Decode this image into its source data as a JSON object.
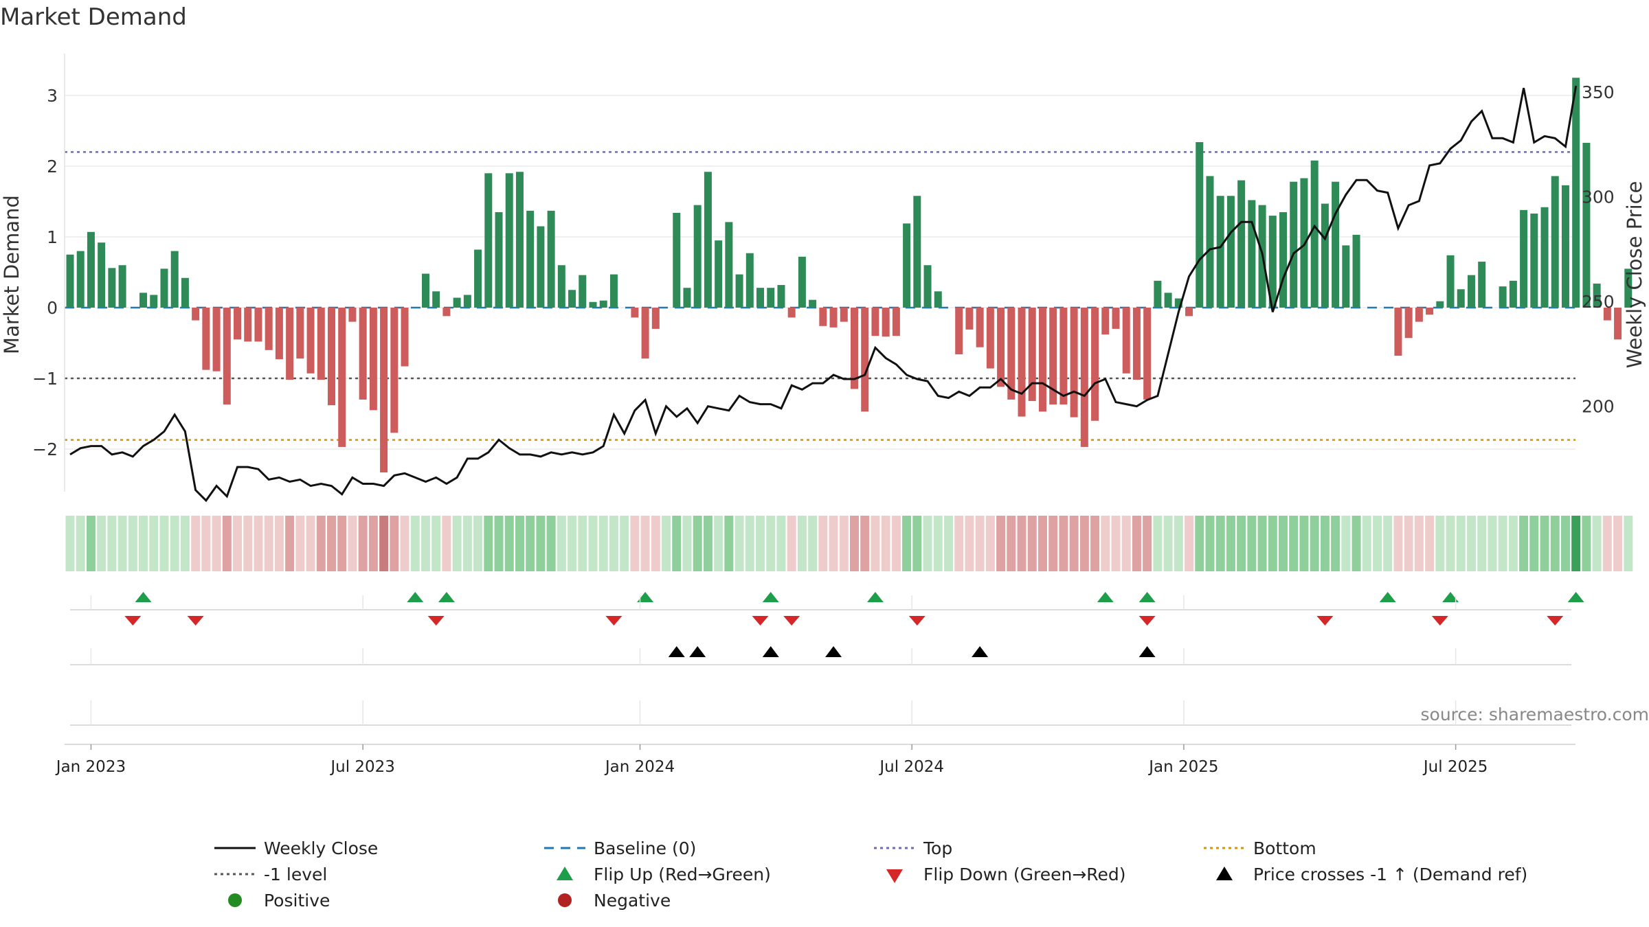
{
  "chart_data": {
    "type": "bar",
    "title": "Market Demand",
    "ylabel_left": "Market Demand",
    "ylabel_right": "Weekly Close Price",
    "ylim_left": [
      -2.55,
      3.55
    ],
    "ylim_right": [
      161,
      367
    ],
    "yticks_left": [
      {
        "v": 3,
        "label": "3"
      },
      {
        "v": 2,
        "label": "2"
      },
      {
        "v": 1,
        "label": "1"
      },
      {
        "v": 0,
        "label": "0"
      },
      {
        "v": -1,
        "label": "−1"
      },
      {
        "v": -2,
        "label": "−2"
      }
    ],
    "yticks_right": [
      {
        "v": 350,
        "label": "350"
      },
      {
        "v": 300,
        "label": "300"
      },
      {
        "v": 250,
        "label": "250"
      },
      {
        "v": 200,
        "label": "200"
      }
    ],
    "xticks": [
      {
        "i": 2,
        "label": "Jan 2023"
      },
      {
        "i": 28,
        "label": "Jul 2023"
      },
      {
        "i": 54.5,
        "label": "Jan 2024"
      },
      {
        "i": 80.5,
        "label": "Jul 2024"
      },
      {
        "i": 106.5,
        "label": "Jan 2025"
      },
      {
        "i": 132.5,
        "label": "Jul 2025"
      }
    ],
    "reference_lines": {
      "top": 2.2,
      "bottom": -1.87,
      "minus_one": -1,
      "baseline": 0
    },
    "demand": [
      0.75,
      0.8,
      1.07,
      0.92,
      0.56,
      0.6,
      0,
      0.21,
      0.18,
      0.55,
      0.8,
      0.42,
      -0.18,
      -0.88,
      -0.9,
      -1.37,
      -0.45,
      -0.48,
      -0.48,
      -0.6,
      -0.73,
      -1.02,
      -0.72,
      -0.93,
      -1.02,
      -1.38,
      -1.97,
      -0.2,
      -1.3,
      -1.45,
      -2.33,
      -1.77,
      -0.83,
      0,
      0.48,
      0.23,
      -0.12,
      0.14,
      0.18,
      0.82,
      1.9,
      1.35,
      1.9,
      1.92,
      1.37,
      1.15,
      1.37,
      0.6,
      0.25,
      0.46,
      0.08,
      0.1,
      0.47,
      0,
      -0.14,
      -0.72,
      -0.3,
      0,
      1.34,
      0.28,
      1.45,
      1.92,
      0.95,
      1.21,
      0.47,
      0.77,
      0.28,
      0.28,
      0.32,
      -0.14,
      0.72,
      0.11,
      -0.26,
      -0.28,
      -0.2,
      -1.15,
      -1.47,
      -0.4,
      -0.41,
      -0.4,
      1.19,
      1.58,
      0.6,
      0.23,
      0,
      -0.66,
      -0.31,
      -0.56,
      -0.86,
      -1.12,
      -1.3,
      -1.54,
      -1.32,
      -1.47,
      -1.37,
      -1.37,
      -1.55,
      -1.97,
      -1.6,
      -0.38,
      -0.3,
      -0.93,
      -1.02,
      -1.3,
      0.38,
      0.21,
      0.13,
      -0.12,
      2.34,
      1.86,
      1.58,
      1.58,
      1.8,
      1.52,
      1.45,
      1.3,
      1.35,
      1.78,
      1.83,
      2.08,
      1.47,
      1.78,
      0.88,
      1.03,
      0,
      0,
      0,
      -0.68,
      -0.43,
      -0.2,
      -0.1,
      0.09,
      0.74,
      0.26,
      0.46,
      0.65,
      0,
      0.3,
      0.38,
      1.38,
      1.33,
      1.42,
      1.86,
      1.73,
      3.25,
      2.33,
      0.34,
      -0.18,
      -0.45,
      0.55
    ],
    "weekly_close": [
      177,
      180,
      181,
      181,
      177,
      178,
      176,
      181,
      184,
      188,
      196,
      188,
      160,
      155,
      162,
      157,
      171,
      171,
      170,
      165,
      166,
      164,
      165,
      162,
      163,
      162,
      158,
      166,
      163,
      163,
      162,
      167,
      168,
      166,
      164,
      166,
      163,
      166,
      175,
      175,
      178,
      184,
      180,
      177,
      177,
      176,
      178,
      177,
      178,
      177,
      178,
      181,
      196,
      187,
      198,
      203,
      187,
      200,
      195,
      199,
      192,
      200,
      199,
      198,
      205,
      202,
      201,
      201,
      199,
      210,
      208,
      211,
      211,
      215,
      213,
      213,
      215,
      228,
      223,
      220,
      215,
      213,
      212,
      205,
      204,
      207,
      205,
      209,
      209,
      213,
      208,
      206,
      211,
      211,
      208,
      205,
      207,
      205,
      211,
      213,
      202,
      201,
      200,
      203,
      205,
      225,
      245,
      262,
      270,
      275,
      276,
      283,
      288,
      288,
      273,
      245,
      261,
      273,
      277,
      286,
      280,
      292,
      301,
      308,
      308,
      303,
      302,
      285,
      296,
      298,
      315,
      316,
      323,
      327,
      336,
      341,
      328,
      328,
      326,
      352,
      326,
      329,
      328,
      324,
      353
    ],
    "demand_color_positive": "#2e8b57",
    "demand_color_negative": "#cd5c5c",
    "heat_colors": {
      "strong_green": "#3aa05a",
      "green": "#8fcf9c",
      "light_green": "#c3e6c9",
      "light_red": "#efcccc",
      "red": "#dea2a2",
      "strong_red": "#c77d7d"
    },
    "flip_up": [
      7,
      33,
      36,
      55,
      67,
      77,
      99,
      103,
      126,
      132,
      144
    ],
    "flip_down": [
      6,
      12,
      35,
      52,
      66,
      69,
      81,
      103,
      120,
      131,
      142
    ],
    "price_cross_up": [
      58,
      60,
      67,
      73,
      87,
      103
    ],
    "source": "source: sharemaestro.com"
  },
  "legend": {
    "weekly_close": "Weekly Close",
    "baseline": "Baseline (0)",
    "top": "Top",
    "bottom": "Bottom",
    "minus_one": "-1 level",
    "flip_up": "Flip Up (Red→Green)",
    "flip_down": "Flip Down (Green→Red)",
    "price_cross": "Price crosses -1 ↑ (Demand ref)",
    "positive": "Positive",
    "negative": "Negative"
  },
  "colors": {
    "line": "#111111",
    "baseline": "#1f77b4",
    "top": "#6b6bb8",
    "bottom": "#d4940a",
    "minus_one": "#555555",
    "flip_up": "#1e9e4a",
    "flip_down": "#d62728",
    "cross": "#000000",
    "positive_dot": "#228b22",
    "negative_dot": "#b22222"
  }
}
